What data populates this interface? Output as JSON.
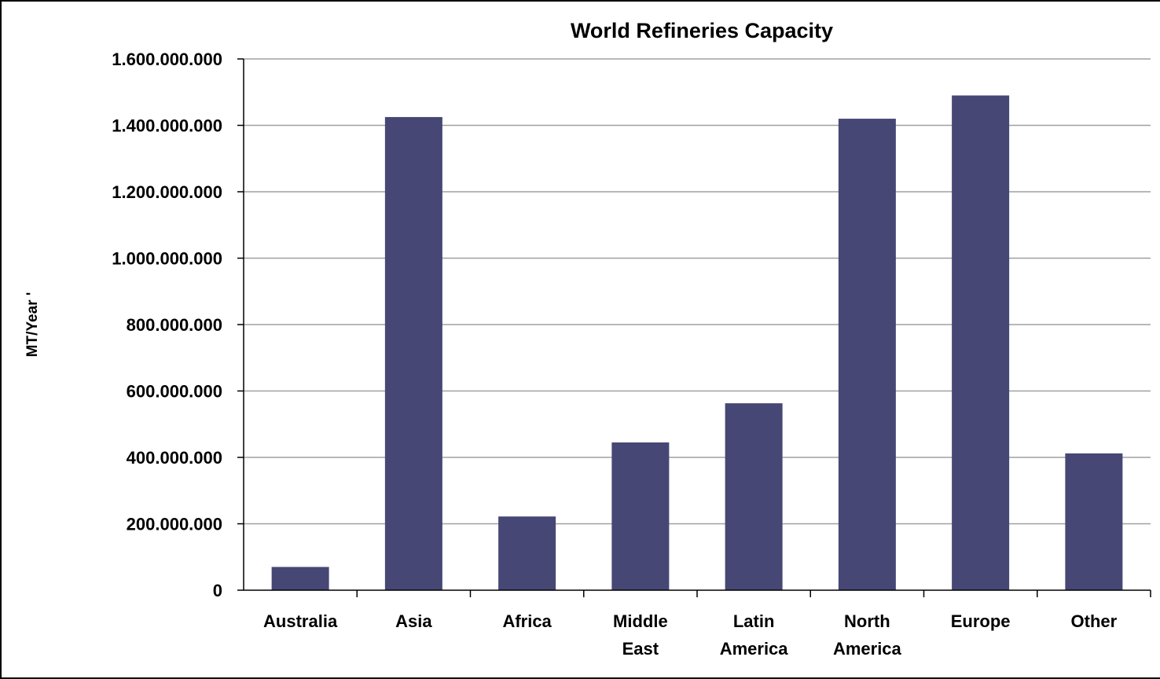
{
  "chart_data": {
    "type": "bar",
    "title": "World Refineries Capacity",
    "xlabel": "",
    "ylabel": "MT/Year '",
    "categories": [
      [
        "Australia"
      ],
      [
        "Asia"
      ],
      [
        "Africa"
      ],
      [
        "Middle",
        "East"
      ],
      [
        "Latin",
        "America"
      ],
      [
        "North",
        "America"
      ],
      [
        "Europe"
      ],
      [
        "Other"
      ]
    ],
    "values": [
      70000000,
      1425000000,
      222000000,
      445000000,
      563000000,
      1420000000,
      1490000000,
      412000000
    ],
    "ylim": [
      0,
      1600000000
    ],
    "ytick_values": [
      0,
      200000000,
      400000000,
      600000000,
      800000000,
      1000000000,
      1200000000,
      1400000000,
      1600000000
    ],
    "ytick_labels": [
      "0",
      "200.000.000",
      "400.000.000",
      "600.000.000",
      "800.000.000",
      "1.000.000.000",
      "1.200.000.000",
      "1.400.000.000",
      "1.600.000.000"
    ],
    "grid": true,
    "legend": "none",
    "colors": {
      "bar": "#464775",
      "grid": "#a0a0a0",
      "axis": "#000000"
    }
  }
}
